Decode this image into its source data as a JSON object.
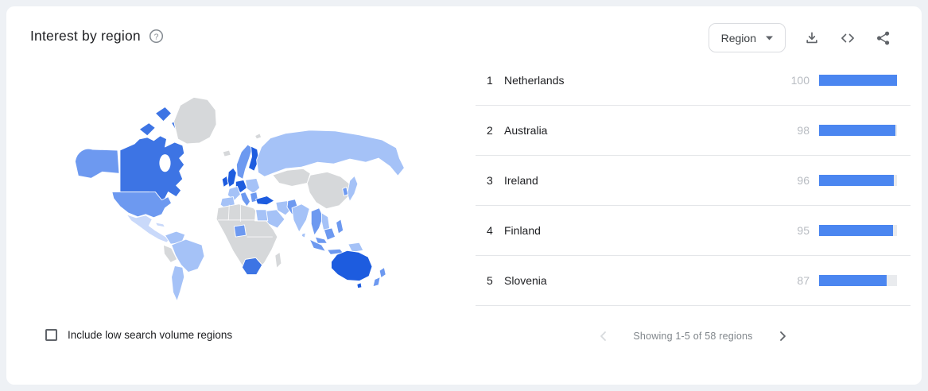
{
  "palette": {
    "page-bg": "#eef1f5",
    "card-bg": "#ffffff",
    "accent": "#4b86f0",
    "bar-track": "#e9ebee",
    "divider": "#e4e6e9",
    "text-primary": "#202124",
    "text-secondary": "#5f6368",
    "text-muted": "#b8bcc2",
    "pagination-text": "#80868b",
    "chevron-disabled": "#d7dadd",
    "map-none": "#d6d8da",
    "map-q1": "#c9d9fa",
    "map-q2": "#a5c2f7",
    "map-q3": "#6d99f0",
    "map-q4": "#3d74e4",
    "map-q5": "#1d5cdf"
  },
  "header": {
    "title": "Interest by region",
    "help_icon": "help-circle",
    "region_dropdown": {
      "selected": "Region"
    },
    "actions": {
      "download": "download-icon",
      "embed": "code-embed-icon",
      "share": "share-icon"
    }
  },
  "chart_data": {
    "type": "choropleth_world_map",
    "title": "Interest by region",
    "scale": "relative search interest 0-100, darker blue = higher",
    "series": [
      {
        "name": "Netherlands",
        "value": 100
      },
      {
        "name": "Australia",
        "value": 98
      },
      {
        "name": "Ireland",
        "value": 96
      },
      {
        "name": "Finland",
        "value": 95
      },
      {
        "name": "Slovenia",
        "value": 87
      }
    ],
    "map_shading": {
      "darkest": [
        "Australia",
        "Finland",
        "United Kingdom",
        "Ireland",
        "Netherlands",
        "Germany",
        "Turkey"
      ],
      "dark": [
        "Canada",
        "South Africa"
      ],
      "medium": [
        "United States",
        "Alaska",
        "Norway",
        "Sweden",
        "Nigeria",
        "New Zealand",
        "Indonesia",
        "Pakistan",
        "Philippines",
        "Italy"
      ],
      "light": [
        "Russia",
        "Brazil",
        "India",
        "Japan",
        "Saudi Arabia",
        "Argentina",
        "France",
        "Spain",
        "Egypt",
        "Iran",
        "Colombia",
        "Eastern Europe"
      ],
      "lightest": [
        "Mexico",
        "Central America",
        "Cuba"
      ],
      "no_data": [
        "Greenland",
        "China",
        "Kazakhstan",
        "Peru",
        "Madagascar",
        "most of Africa",
        "Iceland"
      ]
    }
  },
  "list": {
    "rows": [
      {
        "rank": "1",
        "name": "Netherlands",
        "value": 100
      },
      {
        "rank": "2",
        "name": "Australia",
        "value": 98
      },
      {
        "rank": "3",
        "name": "Ireland",
        "value": 96
      },
      {
        "rank": "4",
        "name": "Finland",
        "value": 95
      },
      {
        "rank": "5",
        "name": "Slovenia",
        "value": 87
      }
    ]
  },
  "pagination": {
    "label": "Showing 1-5 of 58 regions",
    "prev_enabled": false,
    "next_enabled": true
  },
  "footer": {
    "checkbox_label": "Include low search volume regions",
    "checked": false
  }
}
